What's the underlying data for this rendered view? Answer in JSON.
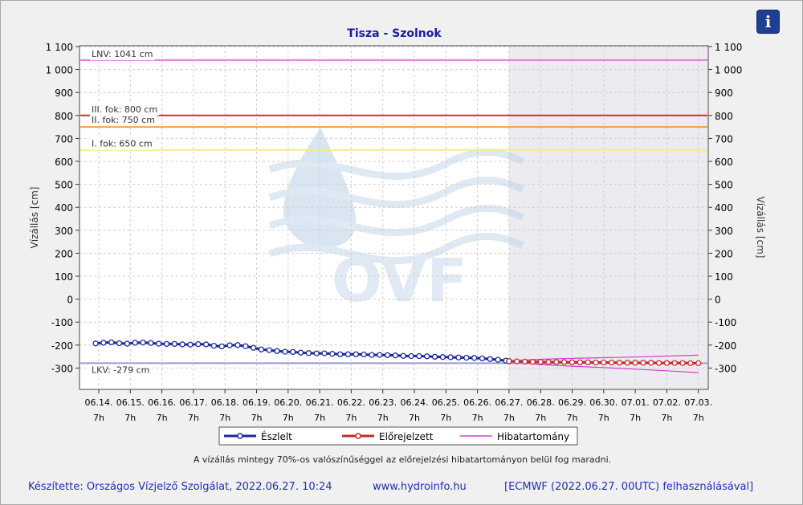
{
  "chart_data": {
    "type": "line",
    "title": "Tisza - Szolnok",
    "ylabel": "Vízállás [cm]",
    "ylabel_right": "Vízállás [cm]",
    "ylim": [
      -350,
      1100
    ],
    "yticks": [
      -300,
      -200,
      -100,
      0,
      100,
      200,
      300,
      400,
      500,
      600,
      700,
      800,
      900,
      1000,
      1100
    ],
    "ytick_labels": [
      "-300",
      "-200",
      "-100",
      "0",
      "100",
      "200",
      "300",
      "400",
      "500",
      "600",
      "700",
      "800",
      "900",
      "1 000",
      "1 100"
    ],
    "xlim": [
      0,
      19.1
    ],
    "x_dates": [
      "06.14.",
      "06.15.",
      "06.16.",
      "06.17.",
      "06.18.",
      "06.19.",
      "06.20.",
      "06.21.",
      "06.22.",
      "06.23.",
      "06.24.",
      "06.25.",
      "06.26.",
      "06.27.",
      "06.28.",
      "06.29.",
      "06.30.",
      "07.01.",
      "07.02.",
      "07.03."
    ],
    "x_hour_label": "7h",
    "forecast_start": 13,
    "grid": true,
    "thresholds": [
      {
        "label": "LNV: 1041 cm",
        "value": 1041,
        "color": "#dd77dd"
      },
      {
        "label": "III. fok: 800 cm",
        "value": 800,
        "color": "#cc3322"
      },
      {
        "label": "II. fok: 750 cm",
        "value": 750,
        "color": "#f0a040"
      },
      {
        "label": "I. fok: 650 cm",
        "value": 650,
        "color": "#f2ee80"
      },
      {
        "label": "LKV: -279 cm",
        "value": -279,
        "color": "#9a9ad8"
      }
    ],
    "series": [
      {
        "name": "Észlelt",
        "color": "#1a2a9a",
        "x": [
          -0.1,
          0.15,
          0.4,
          0.65,
          0.9,
          1.15,
          1.4,
          1.65,
          1.9,
          2.15,
          2.4,
          2.65,
          2.9,
          3.15,
          3.4,
          3.65,
          3.9,
          4.15,
          4.4,
          4.65,
          4.9,
          5.15,
          5.4,
          5.65,
          5.9,
          6.15,
          6.4,
          6.65,
          6.9,
          7.15,
          7.4,
          7.65,
          7.9,
          8.15,
          8.4,
          8.65,
          8.9,
          9.15,
          9.4,
          9.65,
          9.9,
          10.15,
          10.4,
          10.65,
          10.9,
          11.15,
          11.4,
          11.65,
          11.9,
          12.15,
          12.4,
          12.65,
          12.9,
          13.0
        ],
        "values": [
          -193,
          -190,
          -188,
          -192,
          -194,
          -190,
          -189,
          -191,
          -194,
          -195,
          -195,
          -197,
          -198,
          -196,
          -197,
          -203,
          -206,
          -201,
          -200,
          -205,
          -212,
          -219,
          -222,
          -226,
          -229,
          -230,
          -233,
          -235,
          -236,
          -236,
          -238,
          -240,
          -240,
          -240,
          -241,
          -243,
          -243,
          -244,
          -245,
          -247,
          -248,
          -248,
          -249,
          -251,
          -252,
          -253,
          -254,
          -255,
          -256,
          -258,
          -261,
          -264,
          -268,
          -270
        ]
      },
      {
        "name": "Előrejelzett",
        "color": "#c8282a",
        "x": [
          13.0,
          13.25,
          13.5,
          13.75,
          14.0,
          14.25,
          14.5,
          14.75,
          15.0,
          15.25,
          15.5,
          15.75,
          16.0,
          16.25,
          16.5,
          16.75,
          17.0,
          17.25,
          17.5,
          17.75,
          18.0,
          18.25,
          18.5,
          18.75,
          19.0
        ],
        "values": [
          -270,
          -271,
          -272,
          -273,
          -273,
          -274,
          -274,
          -274,
          -275,
          -275,
          -275,
          -276,
          -276,
          -276,
          -277,
          -277,
          -277,
          -277,
          -277,
          -278,
          -278,
          -278,
          -278,
          -279,
          -279
        ]
      },
      {
        "name": "Hibatartomány",
        "color": "#d040d0",
        "x": [
          13.0,
          14.0,
          15.0,
          16.0,
          17.0,
          18.0,
          19.0
        ],
        "upper": [
          -268,
          -262,
          -258,
          -255,
          -252,
          -248,
          -244
        ],
        "lower": [
          -272,
          -285,
          -292,
          -298,
          -305,
          -312,
          -320
        ]
      }
    ]
  },
  "legend": {
    "observed": "Észlelt",
    "forecast": "Előrejelzett",
    "error_range": "Hibatartomány"
  },
  "note": "A vízállás mintegy 70%-os valószínűséggel az előrejelzési hibatartományon belül fog maradni.",
  "watermark": "OVF",
  "footer": {
    "author": "Készítette: Országos Vízjelző Szolgálat, 2022.06.27. 10:24",
    "website": "www.hydroinfo.hu",
    "model": "[ECMWF (2022.06.27. 00UTC) felhasználásával]"
  },
  "info_button": {
    "icon": "info-icon",
    "glyph": "i"
  }
}
